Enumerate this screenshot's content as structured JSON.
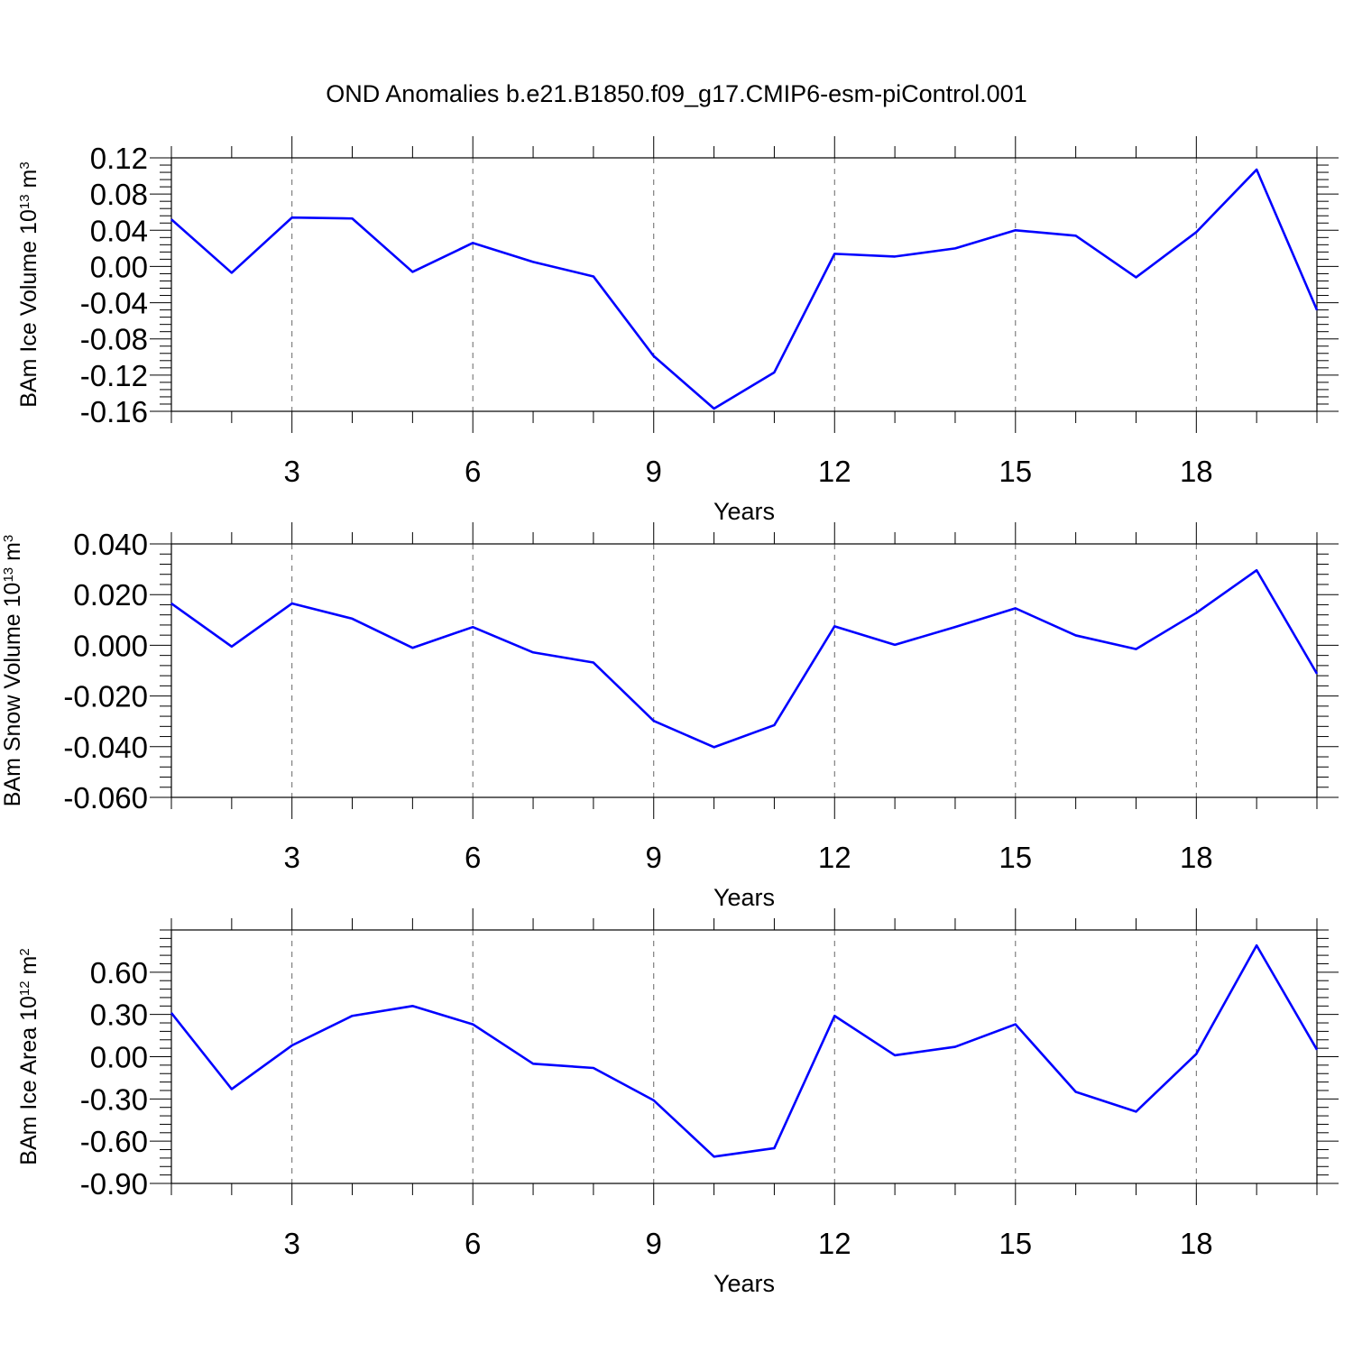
{
  "figure": {
    "title": "OND Anomalies b.e21.B1850.f09_g17.CMIP6-esm-piControl.001"
  },
  "chart_data": [
    {
      "type": "line",
      "title": "OND Anomalies b.e21.B1850.f09_g17.CMIP6-esm-piControl.001",
      "ylabel": "BAm Ice Volume 10",
      "ylabel_exp": "13",
      "ylabel_unit": " m",
      "ylabel_unit_exp": "3",
      "xlabel": "Years",
      "xlim": [
        1,
        20
      ],
      "ylim": [
        -0.16,
        0.12
      ],
      "xticks": [
        3,
        6,
        9,
        12,
        15,
        18
      ],
      "xtick_labels": [
        "3",
        "6",
        "9",
        "12",
        "15",
        "18"
      ],
      "yticks": [
        0.12,
        0.08,
        0.04,
        0.0,
        -0.04,
        -0.08,
        -0.12,
        -0.16
      ],
      "ytick_labels": [
        "0.12",
        "0.08",
        "0.04",
        "0.00",
        "-0.04",
        "-0.08",
        "-0.12",
        "-0.16"
      ],
      "yminor_step": 0.008,
      "series": [
        {
          "name": "BAm Ice Volume",
          "color": "#0000ff",
          "x": [
            1,
            2,
            3,
            4,
            5,
            6,
            7,
            8,
            9,
            10,
            11,
            12,
            13,
            14,
            15,
            16,
            17,
            18,
            19,
            20
          ],
          "values": [
            0.052,
            -0.007,
            0.054,
            0.053,
            -0.006,
            0.026,
            0.005,
            -0.011,
            -0.099,
            -0.157,
            -0.117,
            0.014,
            0.011,
            0.02,
            0.04,
            0.034,
            -0.012,
            0.038,
            0.107,
            -0.048
          ]
        }
      ]
    },
    {
      "type": "line",
      "ylabel": "BAm Snow Volume 10",
      "ylabel_exp": "13",
      "ylabel_unit": " m",
      "ylabel_unit_exp": "3",
      "xlabel": "Years",
      "xlim": [
        1,
        20
      ],
      "ylim": [
        -0.06,
        0.04
      ],
      "xticks": [
        3,
        6,
        9,
        12,
        15,
        18
      ],
      "xtick_labels": [
        "3",
        "6",
        "9",
        "12",
        "15",
        "18"
      ],
      "yticks": [
        0.04,
        0.02,
        0.0,
        -0.02,
        -0.04,
        -0.06
      ],
      "ytick_labels": [
        "0.040",
        "0.020",
        "0.000",
        "-0.020",
        "-0.040",
        "-0.060"
      ],
      "yminor_step": 0.004,
      "series": [
        {
          "name": "BAm Snow Volume",
          "color": "#0000ff",
          "x": [
            1,
            2,
            3,
            4,
            5,
            6,
            7,
            8,
            9,
            10,
            11,
            12,
            13,
            14,
            15,
            16,
            17,
            18,
            19,
            20
          ],
          "values": [
            0.0165,
            -0.0005,
            0.0165,
            0.0105,
            -0.001,
            0.0072,
            -0.0028,
            -0.0068,
            -0.0298,
            -0.0402,
            -0.0315,
            0.0075,
            0.0002,
            0.0072,
            0.0146,
            0.0039,
            -0.0015,
            0.0128,
            0.0296,
            -0.0112
          ]
        }
      ]
    },
    {
      "type": "line",
      "ylabel": "BAm Ice Area 10",
      "ylabel_exp": "12",
      "ylabel_unit": " m",
      "ylabel_unit_exp": "2",
      "xlabel": "Years",
      "xlim": [
        1,
        20
      ],
      "ylim": [
        -0.9,
        0.9
      ],
      "xticks": [
        3,
        6,
        9,
        12,
        15,
        18
      ],
      "xtick_labels": [
        "3",
        "6",
        "9",
        "12",
        "15",
        "18"
      ],
      "yticks": [
        0.6,
        0.3,
        0.0,
        -0.3,
        -0.6,
        -0.9
      ],
      "ytick_labels": [
        "0.60",
        "0.30",
        "0.00",
        "-0.30",
        "-0.60",
        "-0.90"
      ],
      "yminor_step": 0.06,
      "series": [
        {
          "name": "BAm Ice Area",
          "color": "#0000ff",
          "x": [
            1,
            2,
            3,
            4,
            5,
            6,
            7,
            8,
            9,
            10,
            11,
            12,
            13,
            14,
            15,
            16,
            17,
            18,
            19,
            20
          ],
          "values": [
            0.31,
            -0.23,
            0.08,
            0.29,
            0.36,
            0.23,
            -0.05,
            -0.08,
            -0.31,
            -0.71,
            -0.65,
            0.29,
            0.01,
            0.07,
            0.23,
            -0.25,
            -0.39,
            0.02,
            0.79,
            0.05
          ]
        }
      ]
    }
  ]
}
